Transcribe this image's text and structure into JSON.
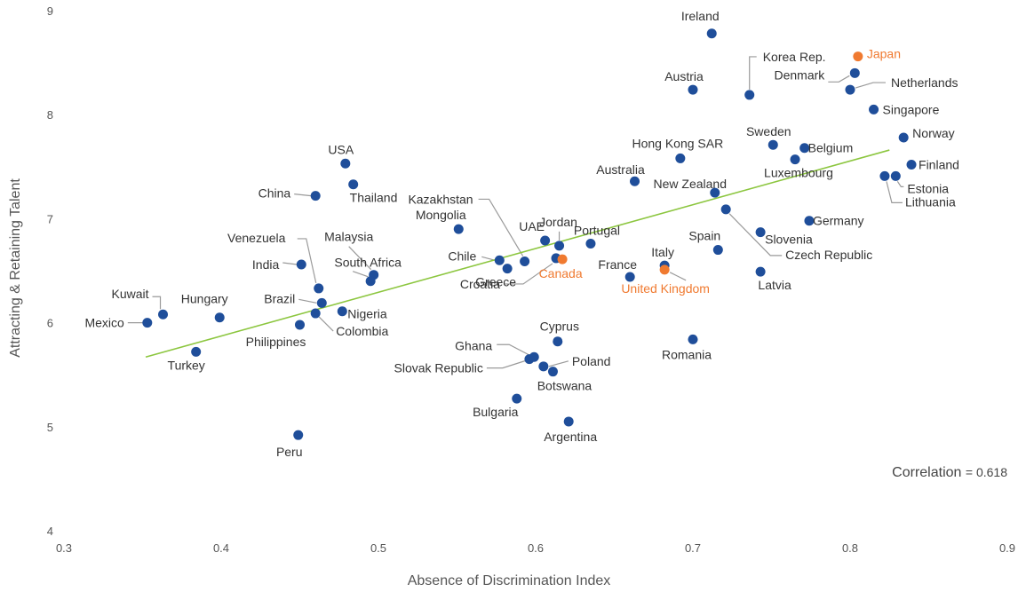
{
  "chart_data": {
    "type": "scatter",
    "xlabel": "Absence of Discrimination Index",
    "ylabel": "Attracting & Retaining Talent",
    "xlim": [
      0.3,
      0.9
    ],
    "ylim": [
      4,
      9
    ],
    "x_ticks": [
      "0.3",
      "0.4",
      "0.5",
      "0.6",
      "0.7",
      "0.8",
      "0.9"
    ],
    "y_ticks": [
      "4",
      "5",
      "6",
      "7",
      "8",
      "9"
    ],
    "grid": false,
    "colors": {
      "point": "#1F4E9A",
      "highlight": "#F07A30",
      "trend": "#8CC63F",
      "leader": "#9A9A9A"
    },
    "trendline": {
      "x": [
        0.352,
        0.825
      ],
      "y": [
        5.67,
        7.66
      ]
    },
    "correlation": {
      "label": "Correlation",
      "value": "= 0.618"
    },
    "points": [
      {
        "name": "Ireland",
        "x": 0.712,
        "y": 8.78
      },
      {
        "name": "Japan",
        "x": 0.805,
        "y": 8.56,
        "highlight": true
      },
      {
        "name": "Korea Rep.",
        "x": 0.736,
        "y": 8.19
      },
      {
        "name": "Austria",
        "x": 0.7,
        "y": 8.24
      },
      {
        "name": "Denmark",
        "x": 0.803,
        "y": 8.4
      },
      {
        "name": "Netherlands",
        "x": 0.8,
        "y": 8.24
      },
      {
        "name": "Singapore",
        "x": 0.815,
        "y": 8.05
      },
      {
        "name": "Norway",
        "x": 0.834,
        "y": 7.78
      },
      {
        "name": "Sweden",
        "x": 0.751,
        "y": 7.71
      },
      {
        "name": "Belgium",
        "x": 0.771,
        "y": 7.68
      },
      {
        "name": "Luxembourg",
        "x": 0.765,
        "y": 7.57
      },
      {
        "name": "Finland",
        "x": 0.839,
        "y": 7.52
      },
      {
        "name": "Hong Kong SAR",
        "x": 0.692,
        "y": 7.58
      },
      {
        "name": "Australia",
        "x": 0.663,
        "y": 7.36
      },
      {
        "name": "New Zealand",
        "x": 0.714,
        "y": 7.25
      },
      {
        "name": "Estonia",
        "x": 0.829,
        "y": 7.41
      },
      {
        "name": "Lithuania",
        "x": 0.822,
        "y": 7.41
      },
      {
        "name": "Czech Republic",
        "x": 0.721,
        "y": 7.09
      },
      {
        "name": "Germany",
        "x": 0.774,
        "y": 6.98
      },
      {
        "name": "Slovenia",
        "x": 0.743,
        "y": 6.87
      },
      {
        "name": "USA",
        "x": 0.479,
        "y": 7.53
      },
      {
        "name": "Thailand",
        "x": 0.484,
        "y": 7.33
      },
      {
        "name": "China",
        "x": 0.46,
        "y": 7.22
      },
      {
        "name": "Mongolia",
        "x": 0.551,
        "y": 6.9
      },
      {
        "name": "Kazakhstan",
        "x": 0.593,
        "y": 6.59
      },
      {
        "name": "Jordan",
        "x": 0.615,
        "y": 6.74
      },
      {
        "name": "UAE",
        "x": 0.606,
        "y": 6.79
      },
      {
        "name": "Portugal",
        "x": 0.635,
        "y": 6.76
      },
      {
        "name": "Chile",
        "x": 0.577,
        "y": 6.6
      },
      {
        "name": "Greece",
        "x": 0.582,
        "y": 6.52
      },
      {
        "name": "Croatia",
        "x": 0.613,
        "y": 6.62
      },
      {
        "name": "Canada",
        "x": 0.617,
        "y": 6.61,
        "highlight": true
      },
      {
        "name": "France",
        "x": 0.66,
        "y": 6.44
      },
      {
        "name": "Italy",
        "x": 0.682,
        "y": 6.55
      },
      {
        "name": "United Kingdom",
        "x": 0.682,
        "y": 6.51,
        "highlight": true
      },
      {
        "name": "Spain",
        "x": 0.716,
        "y": 6.7
      },
      {
        "name": "Latvia",
        "x": 0.743,
        "y": 6.49
      },
      {
        "name": "Venezuela",
        "x": 0.462,
        "y": 6.33
      },
      {
        "name": "India",
        "x": 0.451,
        "y": 6.56
      },
      {
        "name": "Malaysia",
        "x": 0.497,
        "y": 6.46
      },
      {
        "name": "South Africa",
        "x": 0.495,
        "y": 6.4
      },
      {
        "name": "Brazil",
        "x": 0.464,
        "y": 6.19
      },
      {
        "name": "Nigeria",
        "x": 0.477,
        "y": 6.11
      },
      {
        "name": "Colombia",
        "x": 0.46,
        "y": 6.09
      },
      {
        "name": "Philippines",
        "x": 0.45,
        "y": 5.98
      },
      {
        "name": "Kuwait",
        "x": 0.363,
        "y": 6.08
      },
      {
        "name": "Hungary",
        "x": 0.399,
        "y": 6.05
      },
      {
        "name": "Mexico",
        "x": 0.353,
        "y": 6.0
      },
      {
        "name": "Turkey",
        "x": 0.384,
        "y": 5.72
      },
      {
        "name": "Peru",
        "x": 0.449,
        "y": 4.92
      },
      {
        "name": "Cyprus",
        "x": 0.614,
        "y": 5.82
      },
      {
        "name": "Ghana",
        "x": 0.599,
        "y": 5.67
      },
      {
        "name": "Slovak Republic",
        "x": 0.596,
        "y": 5.65
      },
      {
        "name": "Poland",
        "x": 0.605,
        "y": 5.58
      },
      {
        "name": "Botswana",
        "x": 0.611,
        "y": 5.53
      },
      {
        "name": "Romania",
        "x": 0.7,
        "y": 5.84
      },
      {
        "name": "Bulgaria",
        "x": 0.588,
        "y": 5.27
      },
      {
        "name": "Argentina",
        "x": 0.621,
        "y": 5.05
      }
    ]
  }
}
